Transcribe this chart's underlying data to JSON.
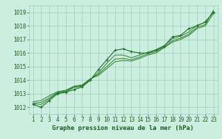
{
  "x": [
    1,
    2,
    3,
    4,
    5,
    6,
    7,
    8,
    9,
    10,
    11,
    12,
    13,
    14,
    15,
    16,
    17,
    18,
    19,
    20,
    21,
    22,
    23
  ],
  "series": [
    {
      "values": [
        1012.2,
        1012.0,
        1012.5,
        1013.0,
        1013.1,
        1013.3,
        1013.5,
        1014.0,
        1014.8,
        1015.5,
        1016.2,
        1016.3,
        1016.1,
        1016.0,
        1016.0,
        1016.2,
        1016.5,
        1017.2,
        1017.3,
        1017.8,
        1018.0,
        1018.3,
        1019.0
      ],
      "color": "#1a6b1a",
      "lw": 0.8,
      "marker": "+",
      "ms": 3
    },
    {
      "values": [
        1012.25,
        1012.2,
        1012.6,
        1013.05,
        1013.15,
        1013.45,
        1013.55,
        1014.05,
        1014.55,
        1015.25,
        1015.85,
        1015.85,
        1015.65,
        1015.85,
        1016.05,
        1016.25,
        1016.55,
        1017.05,
        1017.25,
        1017.55,
        1018.05,
        1018.25,
        1019.05
      ],
      "color": "#2a7a2a",
      "lw": 0.7,
      "marker": null,
      "ms": 0
    },
    {
      "values": [
        1012.3,
        1012.35,
        1012.7,
        1013.1,
        1013.2,
        1013.5,
        1013.6,
        1014.1,
        1014.45,
        1015.0,
        1015.55,
        1015.6,
        1015.5,
        1015.7,
        1015.95,
        1016.1,
        1016.45,
        1016.9,
        1017.1,
        1017.4,
        1017.9,
        1018.1,
        1019.15
      ],
      "color": "#2a7a2a",
      "lw": 0.7,
      "marker": null,
      "ms": 0
    },
    {
      "values": [
        1012.4,
        1012.5,
        1012.85,
        1013.15,
        1013.25,
        1013.55,
        1013.65,
        1014.1,
        1014.35,
        1014.85,
        1015.35,
        1015.45,
        1015.4,
        1015.6,
        1015.85,
        1016.0,
        1016.4,
        1016.8,
        1017.0,
        1017.3,
        1017.8,
        1018.0,
        1018.9
      ],
      "color": "#2a7a2a",
      "lw": 0.7,
      "marker": null,
      "ms": 0
    }
  ],
  "xlim": [
    0.5,
    23.5
  ],
  "ylim": [
    1011.5,
    1019.5
  ],
  "yticks": [
    1012,
    1013,
    1014,
    1015,
    1016,
    1017,
    1018,
    1019
  ],
  "xticks": [
    1,
    2,
    3,
    4,
    5,
    6,
    7,
    8,
    9,
    10,
    11,
    12,
    13,
    14,
    15,
    16,
    17,
    18,
    19,
    20,
    21,
    22,
    23
  ],
  "xlabel": "Graphe pression niveau de la mer (hPa)",
  "bg_color": "#cceee0",
  "grid_color": "#99ccbb",
  "text_color": "#1a5c1a",
  "label_fontsize": 6.5,
  "tick_fontsize": 5.5
}
